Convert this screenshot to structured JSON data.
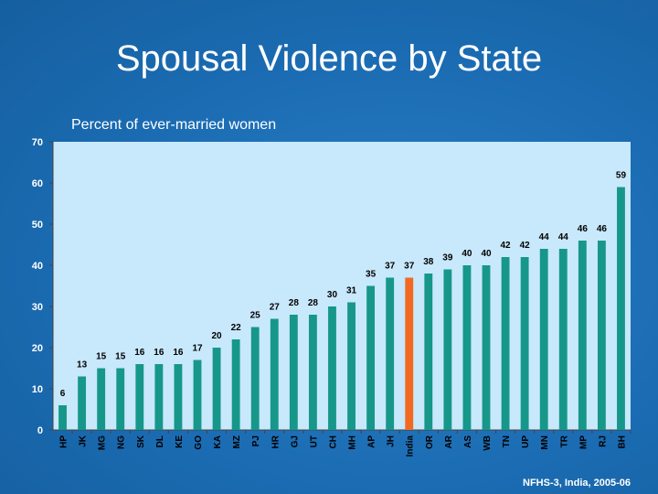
{
  "chart_data": {
    "type": "bar",
    "title": "Spousal Violence by State",
    "subtitle": "Percent of ever-married women",
    "source": "NFHS-3, India, 2005-06",
    "ylim": [
      0,
      70
    ],
    "yticks": [
      0,
      10,
      20,
      30,
      40,
      50,
      60,
      70
    ],
    "categories": [
      "HP",
      "JK",
      "MG",
      "NG",
      "SK",
      "DL",
      "KE",
      "GO",
      "KA",
      "MZ",
      "PJ",
      "HR",
      "GJ",
      "UT",
      "CH",
      "MH",
      "AP",
      "JH",
      "India",
      "OR",
      "AR",
      "AS",
      "WB",
      "TN",
      "UP",
      "MN",
      "TR",
      "MP",
      "RJ",
      "BH"
    ],
    "values": [
      6,
      13,
      15,
      15,
      16,
      16,
      16,
      17,
      20,
      22,
      25,
      27,
      28,
      28,
      30,
      31,
      35,
      37,
      37,
      38,
      39,
      40,
      40,
      42,
      42,
      44,
      44,
      46,
      46,
      59
    ],
    "highlight": "India",
    "colors": {
      "bar": "#16978a",
      "highlight_bar": "#f26a22",
      "plot_background": "#c8e8fb"
    }
  }
}
